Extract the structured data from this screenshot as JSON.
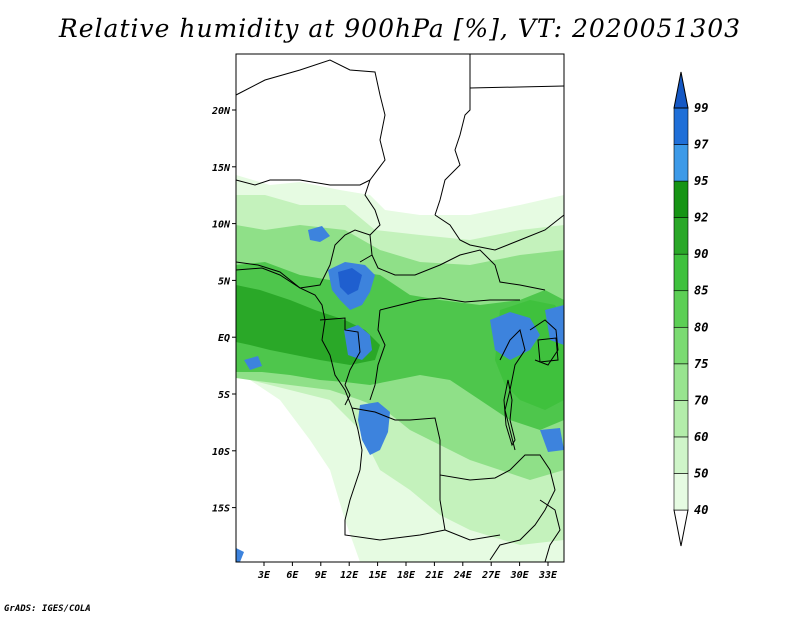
{
  "title": "Relative humidity at 900hPa [%], VT: 2020051303",
  "footer": "GrADS: IGES/COLA",
  "axes": {
    "lon_labels": [
      "3E",
      "6E",
      "9E",
      "12E",
      "15E",
      "18E",
      "21E",
      "24E",
      "27E",
      "30E",
      "33E"
    ],
    "lat_labels": [
      "20N",
      "15N",
      "10N",
      "5N",
      "EQ",
      "5S",
      "10S",
      "15S"
    ]
  },
  "colorbar": {
    "labels": [
      "40",
      "50",
      "60",
      "70",
      "75",
      "80",
      "85",
      "90",
      "92",
      "95",
      "97",
      "99"
    ],
    "colors": [
      "#ffffff",
      "#e6fbe2",
      "#cff5c9",
      "#b3edaa",
      "#98e48f",
      "#7bdb72",
      "#5ccf55",
      "#3fc13d",
      "#2aa828",
      "#169414",
      "#3d9ae8",
      "#1f6fd8",
      "#1558c4"
    ]
  },
  "map_colors": {
    "very_light": "#e6fbe2",
    "light": "#c4f2bc",
    "mid": "#8fe088",
    "strong": "#4ec64c",
    "dark": "#2aa828",
    "blue": "#3d83dd",
    "deep_blue": "#1f5fcf"
  }
}
